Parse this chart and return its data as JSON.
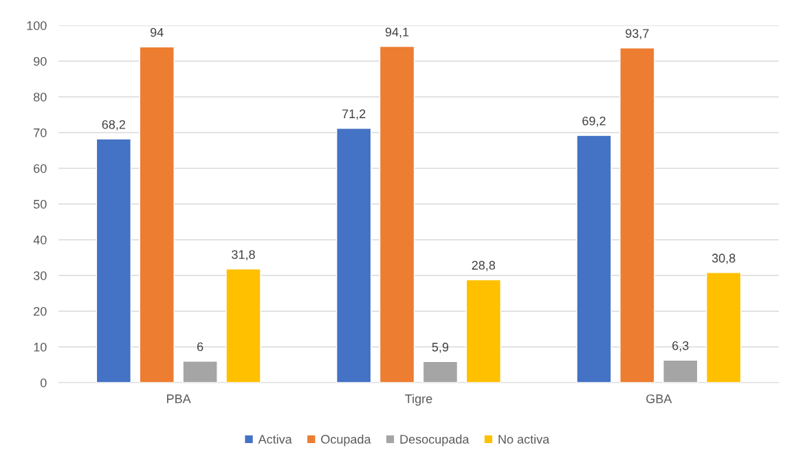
{
  "chart_data": {
    "type": "bar",
    "categories": [
      "PBA",
      "Tigre",
      "GBA"
    ],
    "series": [
      {
        "name": "Activa",
        "color": "#4472c4",
        "values": [
          68.2,
          71.2,
          69.2
        ],
        "value_labels": [
          "68,2",
          "71,2",
          "69,2"
        ]
      },
      {
        "name": "Ocupada",
        "color": "#ed7d31",
        "values": [
          94,
          94.1,
          93.7
        ],
        "value_labels": [
          "94",
          "94,1",
          "93,7"
        ]
      },
      {
        "name": "Desocupada",
        "color": "#a5a5a5",
        "values": [
          6,
          5.9,
          6.3
        ],
        "value_labels": [
          "6",
          "5,9",
          "6,3"
        ]
      },
      {
        "name": "No activa",
        "color": "#ffc000",
        "values": [
          31.8,
          28.8,
          30.8
        ],
        "value_labels": [
          "31,8",
          "28,8",
          "30,8"
        ]
      }
    ],
    "ylim": [
      0,
      100
    ],
    "yticks": [
      0,
      10,
      20,
      30,
      40,
      50,
      60,
      70,
      80,
      90,
      100
    ],
    "grid": "y",
    "legend": "bottom"
  }
}
